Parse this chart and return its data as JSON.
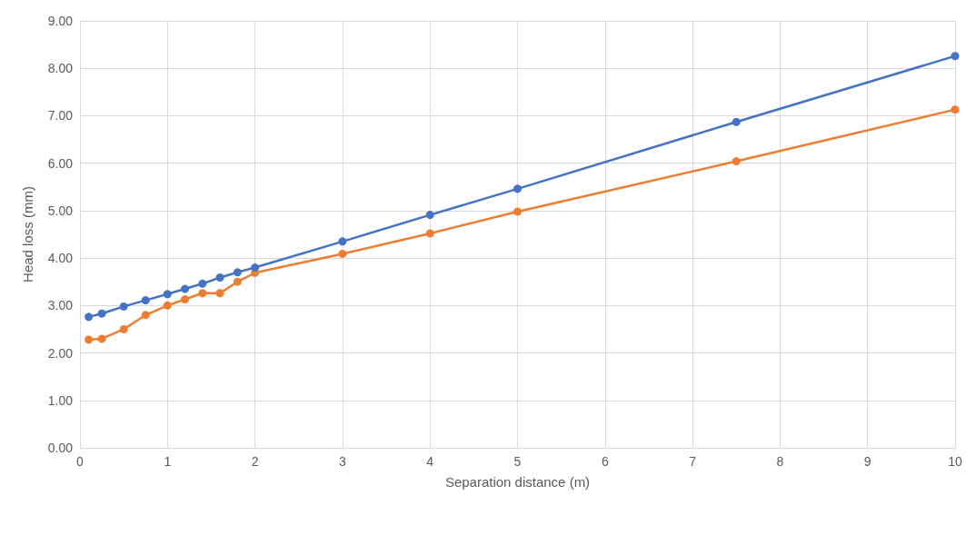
{
  "chart_data": {
    "type": "line",
    "xlabel": "Separation distance (m)",
    "ylabel": "Head loss (mm)",
    "xlim": [
      0,
      10
    ],
    "xticks": [
      0,
      1,
      2,
      3,
      4,
      5,
      6,
      7,
      8,
      9,
      10
    ],
    "ylim": [
      0,
      9
    ],
    "yticks": [
      {
        "value": 0,
        "label": "0.00"
      },
      {
        "value": 1,
        "label": "1.00"
      },
      {
        "value": 2,
        "label": "2.00"
      },
      {
        "value": 3,
        "label": "3.00"
      },
      {
        "value": 4,
        "label": "4.00"
      },
      {
        "value": 5,
        "label": "5.00"
      },
      {
        "value": 6,
        "label": "6.00"
      },
      {
        "value": 7,
        "label": "7.00"
      },
      {
        "value": 8,
        "label": "8.00"
      },
      {
        "value": 9,
        "label": "9.00"
      }
    ],
    "x": [
      0.1,
      0.25,
      0.5,
      0.75,
      1,
      1.2,
      1.4,
      1.6,
      1.8,
      2,
      3,
      4,
      5,
      7.5,
      10
    ],
    "series": [
      {
        "color": "#ed7d31",
        "values": [
          2.28,
          2.3,
          2.5,
          2.8,
          3.0,
          3.13,
          3.26,
          3.26,
          3.5,
          3.69,
          4.09,
          4.52,
          4.98,
          6.04,
          7.13
        ]
      },
      {
        "color": "#4472c4",
        "values": [
          2.76,
          2.83,
          2.98,
          3.11,
          3.24,
          3.35,
          3.46,
          3.59,
          3.7,
          3.8,
          4.35,
          4.91,
          5.46,
          6.87,
          8.26
        ]
      }
    ],
    "grid": true,
    "marker": "circle",
    "line_style": "solid"
  }
}
